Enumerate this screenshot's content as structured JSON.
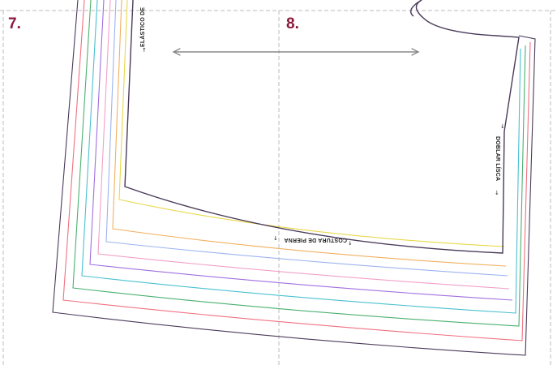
{
  "page_numbers": {
    "left": "7.",
    "right": "8."
  },
  "labels": {
    "elastic": "ELÁSTICO DE",
    "fold_line": "DOBLAR LÍSCA",
    "waist_seam": "COSTURA DE PIERNA"
  },
  "colors": {
    "page_number": "#8b1a3c",
    "outline": "#4a3a5a",
    "sizes": [
      "#f2a0c8",
      "#9db4f0",
      "#f2b060",
      "#e8d84a",
      "#4ac0d0",
      "#4ab070",
      "#f07080",
      "#a070e0"
    ],
    "guide_lines": "#bbbbbb",
    "grain_arrow": "#888888"
  }
}
